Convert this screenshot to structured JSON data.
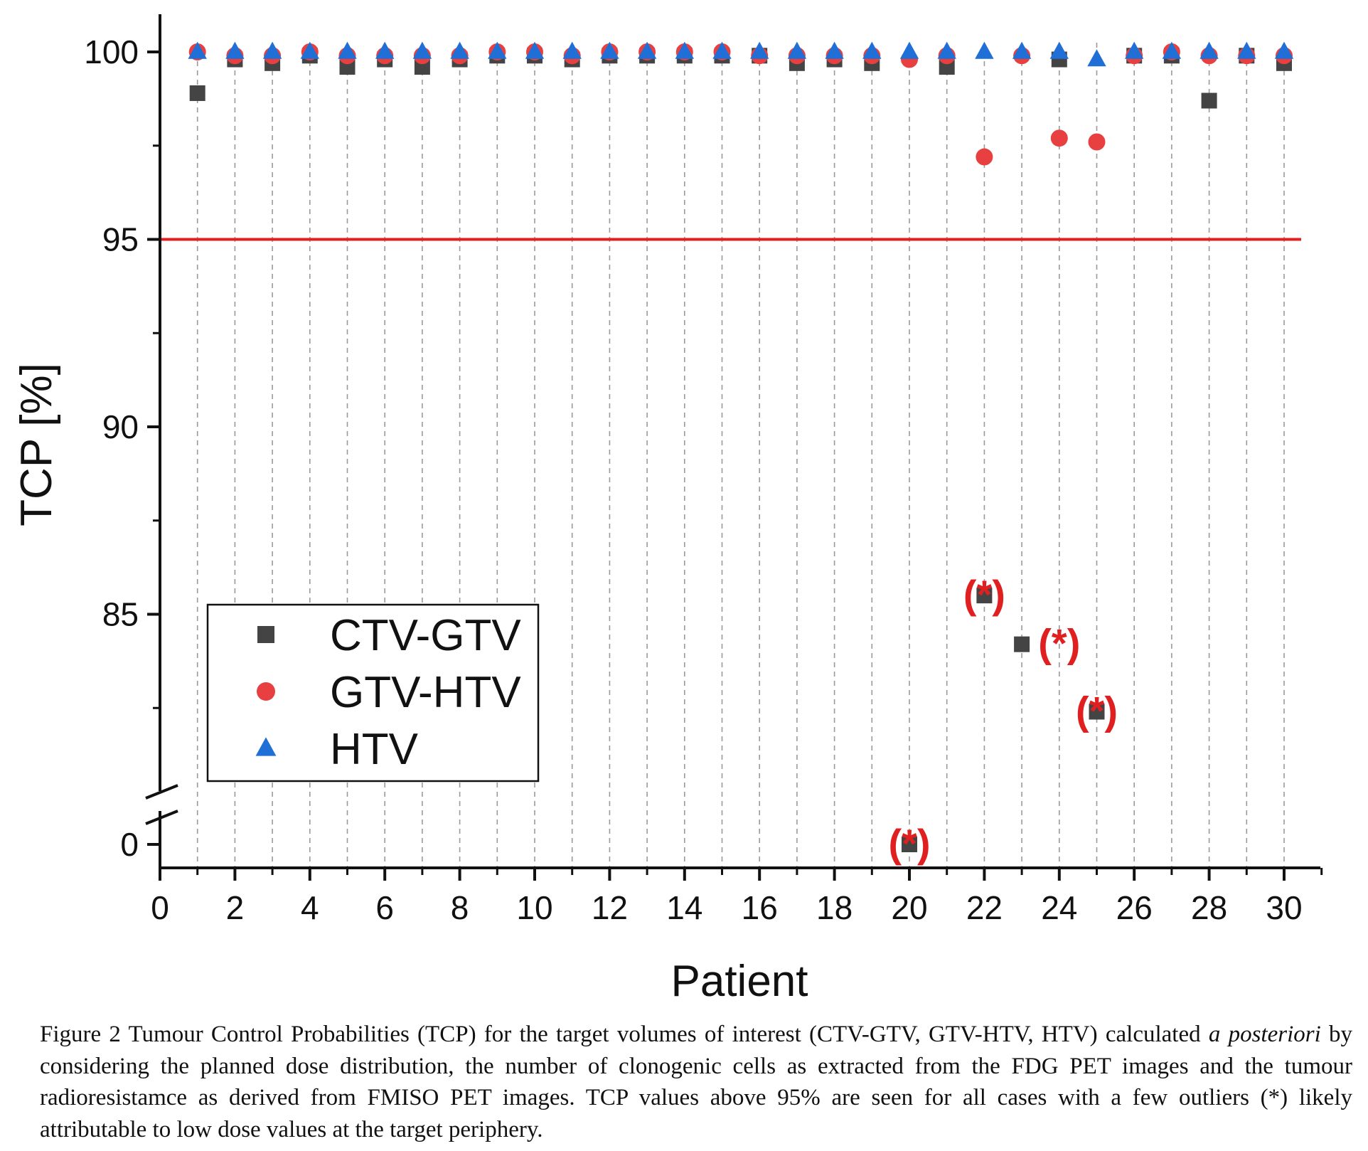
{
  "chart_data": {
    "type": "scatter",
    "title": "",
    "xlabel": "Patient",
    "ylabel": "TCP [%]",
    "xlim": [
      0,
      31
    ],
    "ylim_upper_segment": [
      80.5,
      101
    ],
    "ylim_lower_segment": [
      0,
      0
    ],
    "axis_break": true,
    "x_ticks": [
      0,
      2,
      4,
      6,
      8,
      10,
      12,
      14,
      16,
      18,
      20,
      22,
      24,
      26,
      28,
      30
    ],
    "y_ticks": [
      0,
      85,
      90,
      95,
      100
    ],
    "grid": "vertical dashed at each patient",
    "reference_line": {
      "y": 95,
      "color": "#e02020"
    },
    "legend": {
      "position": "lower-left",
      "entries": [
        "CTV-GTV",
        "GTV-HTV",
        "HTV"
      ]
    },
    "series": [
      {
        "name": "CTV-GTV",
        "marker": "square",
        "color": "#444444",
        "x": [
          1,
          2,
          3,
          4,
          5,
          6,
          7,
          8,
          9,
          10,
          11,
          12,
          13,
          14,
          15,
          16,
          17,
          18,
          19,
          20,
          21,
          22,
          23,
          24,
          25,
          26,
          27,
          28,
          29,
          30
        ],
        "y": [
          98.9,
          99.8,
          99.7,
          99.9,
          99.6,
          99.8,
          99.6,
          99.8,
          99.9,
          99.9,
          99.8,
          99.9,
          99.9,
          99.9,
          99.9,
          99.9,
          99.7,
          99.8,
          99.7,
          0,
          99.6,
          85.5,
          84.2,
          99.8,
          82.4,
          99.9,
          99.9,
          98.7,
          99.9,
          99.7
        ]
      },
      {
        "name": "GTV-HTV",
        "marker": "circle",
        "color": "#e84040",
        "x": [
          1,
          2,
          3,
          4,
          5,
          6,
          7,
          8,
          9,
          10,
          11,
          12,
          13,
          14,
          15,
          16,
          17,
          18,
          19,
          20,
          21,
          22,
          23,
          24,
          25,
          26,
          27,
          28,
          29,
          30
        ],
        "y": [
          100,
          99.9,
          99.9,
          100,
          99.9,
          99.9,
          99.9,
          99.9,
          100,
          100,
          99.9,
          100,
          100,
          100,
          100,
          99.9,
          99.9,
          99.9,
          99.9,
          99.8,
          99.9,
          97.2,
          99.9,
          97.7,
          97.6,
          99.9,
          100,
          99.9,
          99.9,
          99.9
        ]
      },
      {
        "name": "HTV",
        "marker": "triangle",
        "color": "#1f6fd6",
        "x": [
          1,
          2,
          3,
          4,
          5,
          6,
          7,
          8,
          9,
          10,
          11,
          12,
          13,
          14,
          15,
          16,
          17,
          18,
          19,
          20,
          21,
          22,
          23,
          24,
          25,
          26,
          27,
          28,
          29,
          30
        ],
        "y": [
          100,
          100,
          100,
          100,
          100,
          100,
          100,
          100,
          100,
          100,
          100,
          100,
          100,
          100,
          100,
          100,
          100,
          100,
          100,
          100,
          100,
          100,
          100,
          100,
          99.8,
          100,
          100,
          100,
          100,
          100
        ]
      }
    ],
    "annotations": [
      {
        "x": 20,
        "y": 0,
        "text": "(*)"
      },
      {
        "x": 22,
        "y": 85.5,
        "text": "(*)"
      },
      {
        "x": 24,
        "y": 84.2,
        "text": "(*)"
      },
      {
        "x": 25,
        "y": 82.4,
        "text": "(*)"
      }
    ]
  },
  "caption": {
    "part1": "Figure 2 Tumour Control Probabilities (TCP) for the target volumes of interest (CTV-GTV, GTV-HTV, HTV) calculated ",
    "italic1": "a posteriori",
    "part2": " by considering the planned dose distribution, the number of clonogenic cells as extracted from the FDG PET images and the tumour radioresistamce as derived from FMISO PET images. TCP values above 95% are seen for all cases with a few outliers (*) likely attributable to low dose values at the target periphery."
  }
}
